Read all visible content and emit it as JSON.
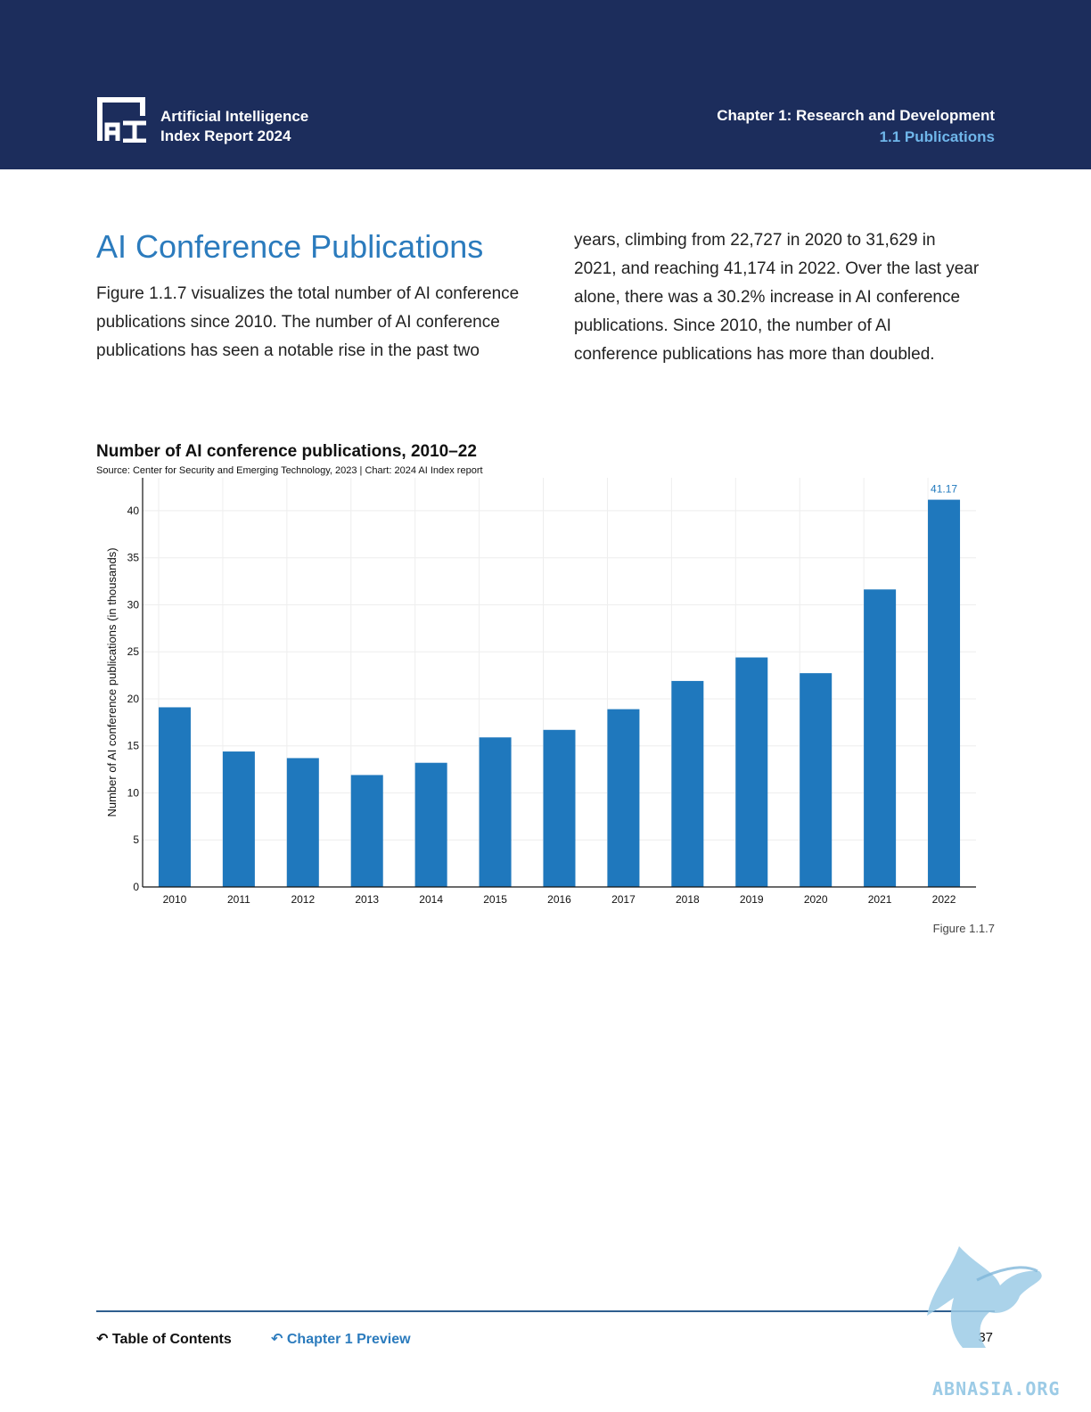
{
  "header": {
    "brand_line1": "Artificial Intelligence",
    "brand_line2": "Index Report 2024",
    "chapter": "Chapter 1: Research and Development",
    "section": "1.1 Publications",
    "background_color": "#1c2d5c",
    "section_color": "#6fb6ea"
  },
  "article": {
    "heading": "AI Conference Publications",
    "left_lines": [
      "Figure 1.1.7 visualizes the total number of AI conference",
      "publications since 2010. The number of AI conference",
      "publications has seen a notable rise in the past two"
    ],
    "right_lines": [
      "years, climbing from 22,727 in 2020 to 31,629 in",
      "2021, and reaching 41,174 in 2022. Over the last year",
      "alone, there was a 30.2% increase in AI conference",
      "publications. Since 2010, the number of AI",
      "conference publications has more than doubled."
    ]
  },
  "chart_data": {
    "type": "bar",
    "title": "Number of AI conference publications, 2010–22",
    "source": "Source: Center for Security and Emerging Technology, 2023 | Chart: 2024 AI Index report",
    "xlabel": "",
    "ylabel": "Number of AI conference publications (in thousands)",
    "categories": [
      "2010",
      "2011",
      "2012",
      "2013",
      "2014",
      "2015",
      "2016",
      "2017",
      "2018",
      "2019",
      "2020",
      "2021",
      "2022"
    ],
    "values": [
      19.1,
      14.4,
      13.7,
      11.9,
      13.2,
      15.9,
      16.7,
      18.9,
      21.9,
      24.4,
      22.73,
      31.63,
      41.17
    ],
    "data_labels": {
      "2022": "41.17"
    },
    "ylim": [
      0,
      43.5
    ],
    "yticks": [
      0,
      5,
      10,
      15,
      20,
      25,
      30,
      35,
      40
    ],
    "bar_color": "#1f78bd",
    "grid": true,
    "legend": "none"
  },
  "figure_label": "Figure 1.1.7",
  "footer": {
    "toc_label": "Table of Contents",
    "chapter_label": "Chapter 1 Preview",
    "page_number": "37",
    "link_color": "#2b7bbd"
  },
  "watermark_text": "ABNASIA.ORG"
}
